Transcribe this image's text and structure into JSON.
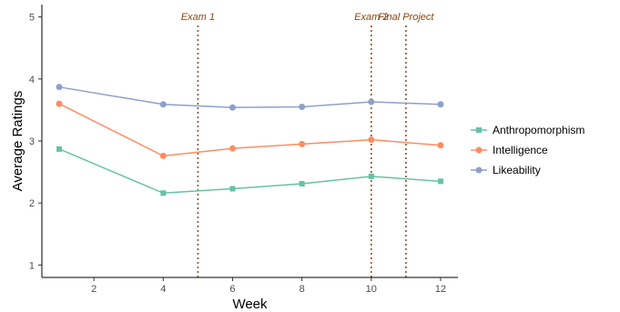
{
  "chart_data": {
    "type": "line",
    "xlabel": "Week",
    "ylabel": "Average Ratings",
    "xlim": [
      0.5,
      12.5
    ],
    "ylim": [
      0.8,
      5.2
    ],
    "xticks": [
      2,
      4,
      6,
      8,
      10,
      12
    ],
    "yticks": [
      1,
      2,
      3,
      4,
      5
    ],
    "grid": false,
    "legend_position": "right",
    "x": [
      1,
      4,
      6,
      8,
      10,
      12
    ],
    "series": [
      {
        "name": "Anthropomorphism",
        "values": [
          2.87,
          2.16,
          2.23,
          2.31,
          2.43,
          2.35
        ],
        "color": "#66c2a5",
        "marker": "square"
      },
      {
        "name": "Intelligence",
        "values": [
          3.6,
          2.76,
          2.88,
          2.95,
          3.02,
          2.93
        ],
        "color": "#fc8d62",
        "marker": "circle"
      },
      {
        "name": "Likeability",
        "values": [
          3.87,
          3.59,
          3.54,
          3.55,
          3.63,
          3.59
        ],
        "color": "#8da0cb",
        "marker": "circle"
      }
    ],
    "annotations": [
      {
        "label": "Exam 1",
        "x": 5
      },
      {
        "label": "Exam 2",
        "x": 10
      },
      {
        "label": "Final Project",
        "x": 11
      }
    ],
    "annotation_color": "#8b4513"
  }
}
